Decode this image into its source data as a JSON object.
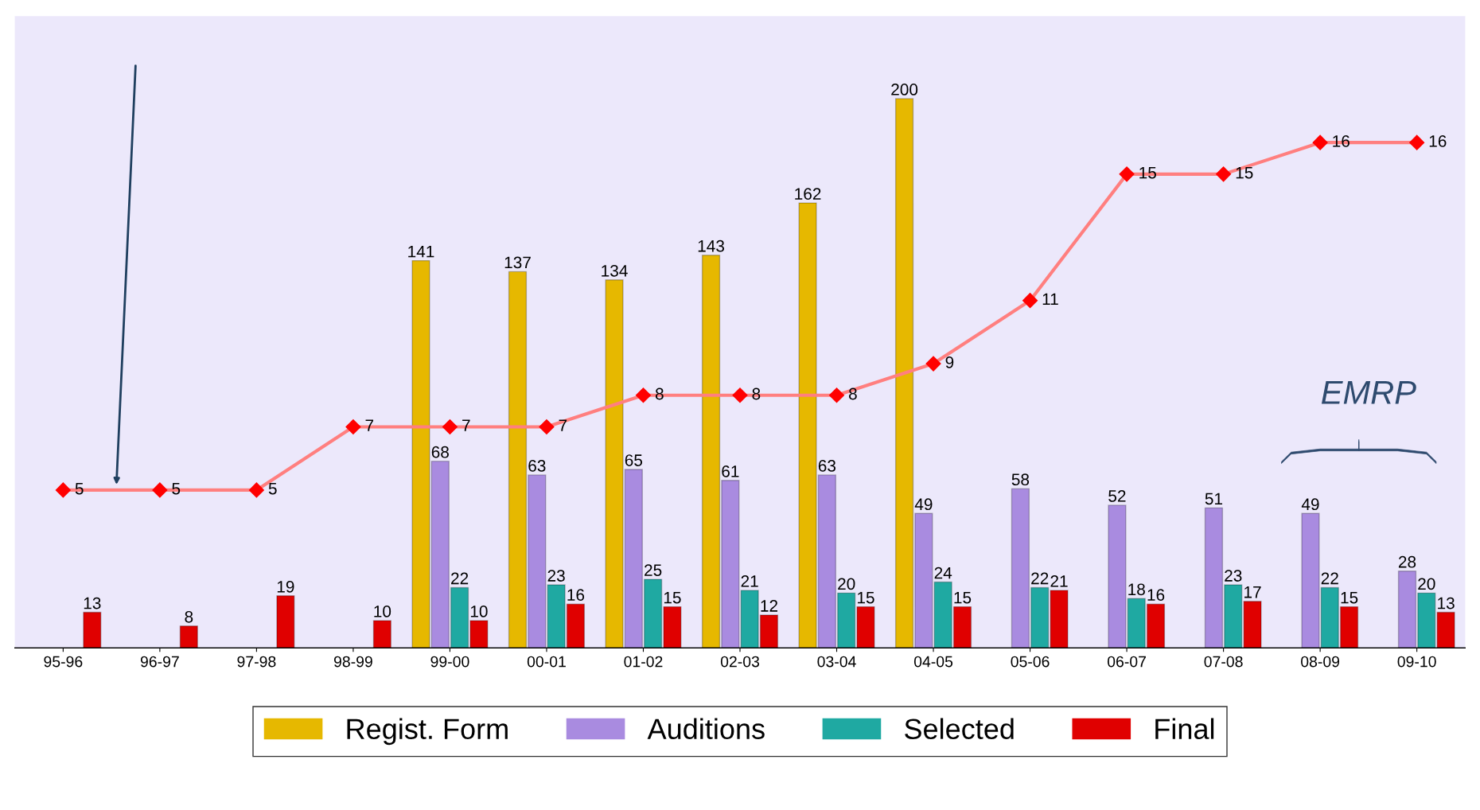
{
  "chart_data": {
    "type": "bar",
    "categories": [
      "95-96",
      "96-97",
      "97-98",
      "98-99",
      "99-00",
      "00-01",
      "01-02",
      "02-03",
      "03-04",
      "04-05",
      "05-06",
      "06-07",
      "07-08",
      "08-09",
      "09-10"
    ],
    "series": [
      {
        "name": "Regist. Form",
        "color": "#e6b800",
        "values": [
          null,
          null,
          null,
          null,
          141,
          137,
          134,
          143,
          162,
          200,
          null,
          null,
          null,
          null,
          null
        ]
      },
      {
        "name": "Auditions",
        "color": "#a98be0",
        "values": [
          null,
          null,
          null,
          null,
          68,
          63,
          65,
          61,
          63,
          49,
          58,
          52,
          51,
          49,
          28
        ]
      },
      {
        "name": "Selected",
        "color": "#1fa9a2",
        "values": [
          null,
          null,
          null,
          null,
          22,
          23,
          25,
          21,
          20,
          24,
          22,
          18,
          23,
          22,
          20
        ]
      },
      {
        "name": "Final",
        "color": "#e00000",
        "values": [
          13,
          8,
          19,
          10,
          10,
          16,
          15,
          12,
          15,
          15,
          21,
          16,
          17,
          15,
          13
        ]
      },
      {
        "type": "line",
        "axis": "y2",
        "color": "#ff7f7f",
        "marker": "diamond",
        "values": [
          5,
          5,
          5,
          7,
          7,
          7,
          8,
          8,
          8,
          9,
          11,
          15,
          15,
          16,
          16
        ]
      }
    ],
    "data_labels": true,
    "legend": "bottom",
    "grid": false,
    "tick_labels": "x",
    "annotations": [
      "EMRP"
    ]
  }
}
